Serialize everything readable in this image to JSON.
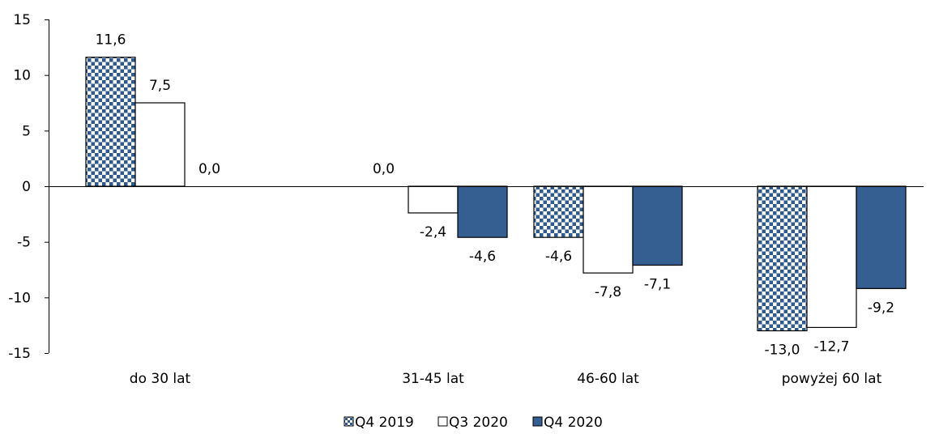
{
  "chart_data": {
    "type": "bar",
    "title": "",
    "xlabel": "",
    "ylabel": "",
    "categories": [
      "do 30 lat",
      "31-45 lat",
      "46-60 lat",
      "powyżej 60 lat"
    ],
    "ylim": [
      -15,
      15
    ],
    "yticks": [
      15,
      10,
      5,
      0,
      -5,
      -10,
      -15
    ],
    "ytick_labels": [
      "15",
      "10",
      "5",
      "0",
      "-5",
      "-10",
      "-15"
    ],
    "grid": false,
    "legend_position": "bottom",
    "series": [
      {
        "name": "Q4 2019",
        "pattern": "checkered",
        "color": "#2f5a8e",
        "values": [
          11.6,
          0.0,
          -4.6,
          -13.0
        ],
        "labels": [
          "11,6",
          "0,0",
          "-4,6",
          "-13,0"
        ]
      },
      {
        "name": "Q3 2020",
        "pattern": "solid",
        "color": "#ffffff",
        "values": [
          7.5,
          -2.4,
          -7.8,
          -12.7
        ],
        "labels": [
          "7,5",
          "-2,4",
          "-7,8",
          "-12,7"
        ]
      },
      {
        "name": "Q4 2020",
        "pattern": "solid",
        "color": "#355e91",
        "values": [
          0.0,
          -4.6,
          -7.1,
          -9.2
        ],
        "labels": [
          "0,0",
          "-4,6",
          "-7,1",
          "-9,2"
        ]
      }
    ]
  }
}
